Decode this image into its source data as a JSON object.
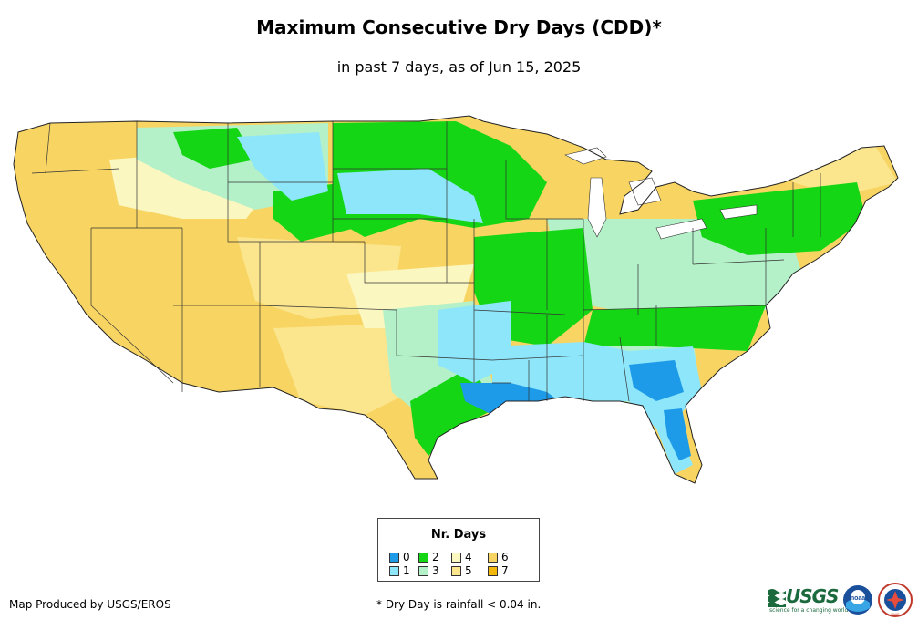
{
  "header": {
    "title": "Maximum Consecutive Dry Days (CDD)*",
    "subtitle": "in past 7 days, as of Jun 15, 2025"
  },
  "legend": {
    "title": "Nr. Days",
    "items": [
      {
        "label": "0",
        "color": "#1e9be8"
      },
      {
        "label": "1",
        "color": "#8ee6fb"
      },
      {
        "label": "2",
        "color": "#14d614"
      },
      {
        "label": "3",
        "color": "#b4f0c8"
      },
      {
        "label": "4",
        "color": "#fbf7c0"
      },
      {
        "label": "5",
        "color": "#fbe68e"
      },
      {
        "label": "6",
        "color": "#f8d563"
      },
      {
        "label": "7",
        "color": "#f5b70a"
      }
    ]
  },
  "footer": {
    "credit": "Map Produced by USGS/EROS",
    "note": "* Dry Day is rainfall < 0.04 in."
  },
  "logos": {
    "usgs_word": "USGS",
    "usgs_tagline": "science for a changing world",
    "noaa_label": "noaa",
    "nws_label": "NWS"
  }
}
